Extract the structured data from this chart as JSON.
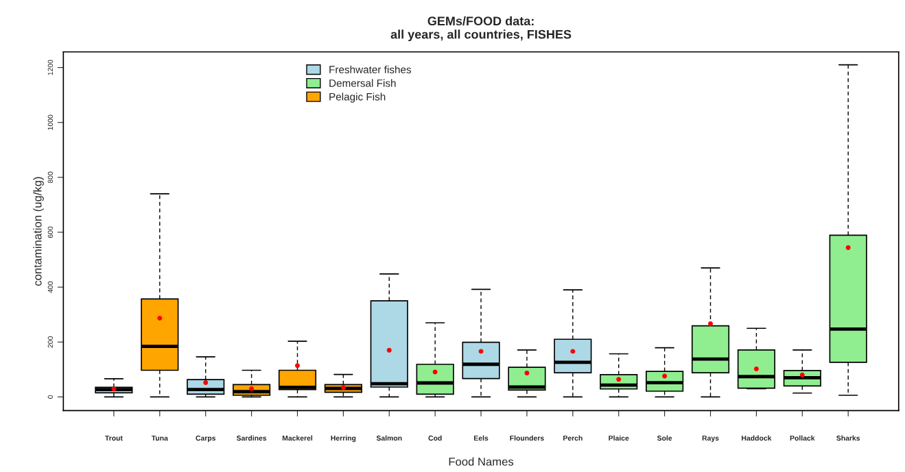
{
  "chart_data": {
    "type": "box",
    "title": "GEMs/FOOD data:\nall years, all countries, FISHES",
    "xlabel": "Food Names",
    "ylabel": "contamination (ug/kg)",
    "categories": [
      "Trout",
      "Tuna",
      "Carps",
      "Sardines",
      "Mackerel",
      "Herring",
      "Salmon",
      "Cod",
      "Eels",
      "Flounders",
      "Perch",
      "Plaice",
      "Sole",
      "Rays",
      "Haddock",
      "Pollack",
      "Sharks"
    ],
    "series": [
      {
        "name": "Freshwater fishes",
        "color": "#add8e6",
        "boxes": [
          {
            "low": 0,
            "q1": 15,
            "median": 27,
            "q3": 35,
            "high": 66,
            "mean": 29
          },
          null,
          {
            "low": 0,
            "q1": 10,
            "median": 27,
            "q3": 63,
            "high": 146,
            "mean": 52
          },
          null,
          null,
          null,
          {
            "low": 0,
            "q1": 36,
            "median": 48,
            "q3": 350,
            "high": 448,
            "mean": 170
          },
          null,
          {
            "low": 0,
            "q1": 67,
            "median": 119,
            "q3": 199,
            "high": 392,
            "mean": 166
          },
          null,
          {
            "low": 0,
            "q1": 88,
            "median": 126,
            "q3": 210,
            "high": 390,
            "mean": 166
          },
          null,
          null,
          null,
          null,
          null,
          null
        ]
      },
      {
        "name": "Demersal Fish",
        "color": "#90ee90",
        "boxes": [
          null,
          null,
          null,
          null,
          null,
          null,
          null,
          {
            "low": 0,
            "q1": 10,
            "median": 51,
            "q3": 119,
            "high": 270,
            "mean": 91
          },
          null,
          {
            "low": 0,
            "q1": 25,
            "median": 36,
            "q3": 108,
            "high": 171,
            "mean": 87
          },
          null,
          {
            "low": 0,
            "q1": 29,
            "median": 43,
            "q3": 81,
            "high": 157,
            "mean": 64
          },
          {
            "low": 0,
            "q1": 21,
            "median": 52,
            "q3": 93,
            "high": 179,
            "mean": 76
          },
          {
            "low": 0,
            "q1": 88,
            "median": 138,
            "q3": 259,
            "high": 470,
            "mean": 267
          },
          {
            "low": 30,
            "q1": 32,
            "median": 74,
            "q3": 171,
            "high": 250,
            "mean": 102
          },
          {
            "low": 14,
            "q1": 40,
            "median": 70,
            "q3": 96,
            "high": 171,
            "mean": 80
          },
          {
            "low": 6,
            "q1": 126,
            "median": 247,
            "q3": 589,
            "high": 1210,
            "mean": 544
          }
        ]
      },
      {
        "name": "Pelagic Fish",
        "color": "#ffa500",
        "boxes": [
          null,
          {
            "low": 0,
            "q1": 97,
            "median": 184,
            "q3": 357,
            "high": 740,
            "mean": 287
          },
          null,
          {
            "low": 0,
            "q1": 6,
            "median": 19,
            "q3": 45,
            "high": 97,
            "mean": 30
          },
          {
            "low": 0,
            "q1": 27,
            "median": 35,
            "q3": 97,
            "high": 203,
            "mean": 114
          },
          {
            "low": 0,
            "q1": 17,
            "median": 31,
            "q3": 45,
            "high": 82,
            "mean": 34
          },
          null,
          null,
          null,
          null,
          null,
          null,
          null,
          null,
          null,
          null,
          null
        ]
      }
    ],
    "ylim": [
      -50,
      1257
    ],
    "yticks": [
      0,
      200,
      400,
      600,
      800,
      1000,
      1200
    ],
    "grid": false,
    "legend": "top left"
  }
}
